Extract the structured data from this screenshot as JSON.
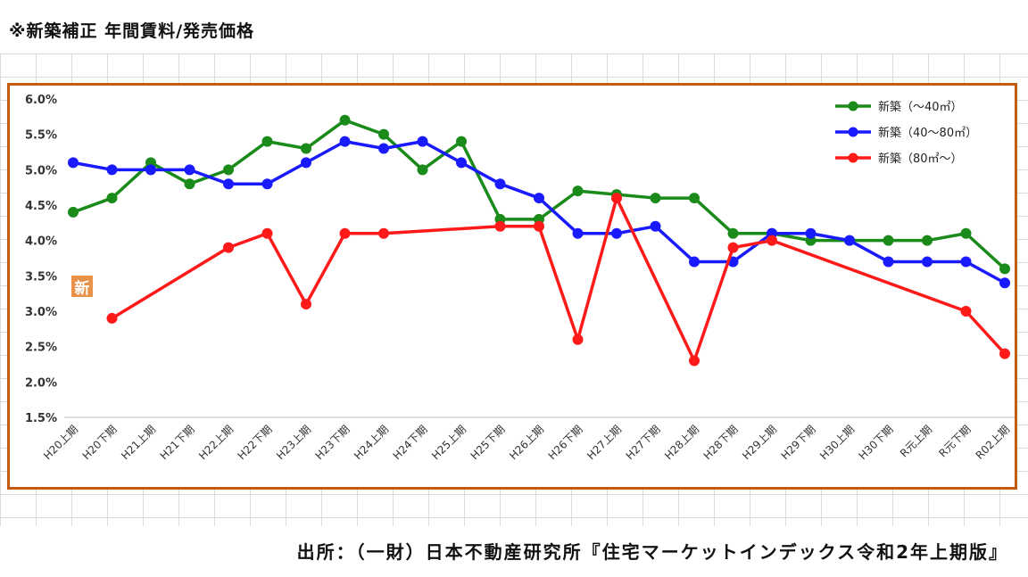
{
  "page": {
    "title": "※新築補正 年間賃料/発売価格",
    "source": "出所：（一財）日本不動産研究所『住宅マーケットインデックス令和2年上期版』",
    "badge": "新"
  },
  "chart_data": {
    "type": "line",
    "title": "",
    "xlabel": "",
    "ylabel": "",
    "ylim": [
      1.5,
      6.0
    ],
    "yticks": [
      "1.5%",
      "2.0%",
      "2.5%",
      "3.0%",
      "3.5%",
      "4.0%",
      "4.5%",
      "5.0%",
      "5.5%",
      "6.0%"
    ],
    "categories": [
      "H20上期",
      "H20下期",
      "H21上期",
      "H21下期",
      "H22上期",
      "H22下期",
      "H23上期",
      "H23下期",
      "H24上期",
      "H24下期",
      "H25上期",
      "H25下期",
      "H26上期",
      "H26下期",
      "H27上期",
      "H27下期",
      "H28上期",
      "H28下期",
      "H29上期",
      "H29下期",
      "H30上期",
      "H30下期",
      "R元上期",
      "R元下期",
      "R02上期"
    ],
    "legend_position": "top-right",
    "grid": false,
    "series": [
      {
        "name": "新築（～40㎡）",
        "color": "#1a8a1a",
        "values": [
          4.4,
          4.6,
          5.1,
          4.8,
          5.0,
          5.4,
          5.3,
          5.7,
          5.5,
          5.0,
          5.4,
          4.3,
          4.3,
          4.7,
          4.65,
          4.6,
          4.6,
          4.1,
          4.1,
          4.0,
          4.0,
          4.0,
          4.0,
          4.1,
          3.6
        ]
      },
      {
        "name": "新築（40～80㎡）",
        "color": "#1a1aff",
        "values": [
          5.1,
          5.0,
          5.0,
          5.0,
          4.8,
          4.8,
          5.1,
          5.4,
          5.3,
          5.4,
          5.1,
          4.8,
          4.6,
          4.1,
          4.1,
          4.2,
          3.7,
          3.7,
          4.1,
          4.1,
          4.0,
          3.7,
          3.7,
          3.7,
          3.4
        ]
      },
      {
        "name": "新築（80㎡～）",
        "color": "#ff1a1a",
        "values": [
          null,
          2.9,
          null,
          null,
          3.9,
          4.1,
          3.1,
          4.1,
          4.1,
          null,
          null,
          4.2,
          4.2,
          2.6,
          4.6,
          null,
          2.3,
          3.9,
          4.0,
          null,
          null,
          null,
          null,
          3.0,
          2.4
        ]
      }
    ]
  }
}
